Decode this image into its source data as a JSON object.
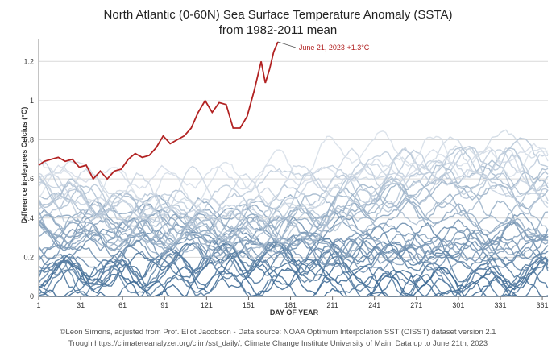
{
  "chart_data": {
    "type": "line",
    "title_line1": "North Atlantic (0-60N) Sea Surface Temperature Anomaly (SSTA)",
    "title_line2": "from 1982-2011 mean",
    "xlabel": "DAY OF YEAR",
    "ylabel": "Difference in degrees Celcius (°C)",
    "xlim": [
      1,
      365
    ],
    "ylim": [
      0,
      1.3
    ],
    "x_ticks": [
      1,
      31,
      61,
      91,
      121,
      151,
      181,
      211,
      241,
      271,
      301,
      331,
      361
    ],
    "x_tick_labels": [
      "1",
      "31",
      "61",
      "91",
      "121",
      "151",
      "181",
      "211",
      "241",
      "271",
      "301",
      "331",
      "361"
    ],
    "y_ticks": [
      0,
      0.2,
      0.4,
      0.6,
      0.8,
      1.0,
      1.2
    ],
    "y_tick_labels": [
      "0",
      "0.2",
      "0.4",
      "0.6",
      "0.8",
      "1",
      "1.2"
    ],
    "grid": true,
    "highlight_series": {
      "color": "#b22222",
      "x": [
        1,
        5,
        10,
        15,
        20,
        25,
        30,
        35,
        40,
        45,
        50,
        55,
        60,
        65,
        70,
        75,
        80,
        85,
        90,
        95,
        100,
        105,
        110,
        115,
        120,
        125,
        130,
        135,
        140,
        145,
        150,
        155,
        160,
        163,
        166,
        169,
        172
      ],
      "y": [
        0.67,
        0.69,
        0.7,
        0.71,
        0.69,
        0.7,
        0.66,
        0.67,
        0.6,
        0.64,
        0.6,
        0.64,
        0.65,
        0.7,
        0.73,
        0.71,
        0.72,
        0.76,
        0.82,
        0.78,
        0.8,
        0.82,
        0.86,
        0.94,
        1.0,
        0.94,
        0.99,
        0.98,
        0.86,
        0.86,
        0.92,
        1.05,
        1.2,
        1.09,
        1.16,
        1.25,
        1.3
      ]
    },
    "annotation": {
      "x": 172,
      "y": 1.3,
      "text": "June 21, 2023 +1.3°C"
    },
    "background_series_count": 41,
    "background_series_color_range": [
      "#2e5e8c",
      "#d6dee8"
    ],
    "background_series_value_range": [
      0.0,
      0.95
    ]
  },
  "credits": {
    "line1": "©Leon Simons, adjusted from Prof. Eliot Jacobson - Data source: NOAA Optimum Interpolation SST (OISST) dataset version 2.1",
    "line2": "Trough https://climatereanalyzer.org/clim/sst_daily/, Climate Change Institute University of Main. Data up to June 21th, 2023"
  }
}
